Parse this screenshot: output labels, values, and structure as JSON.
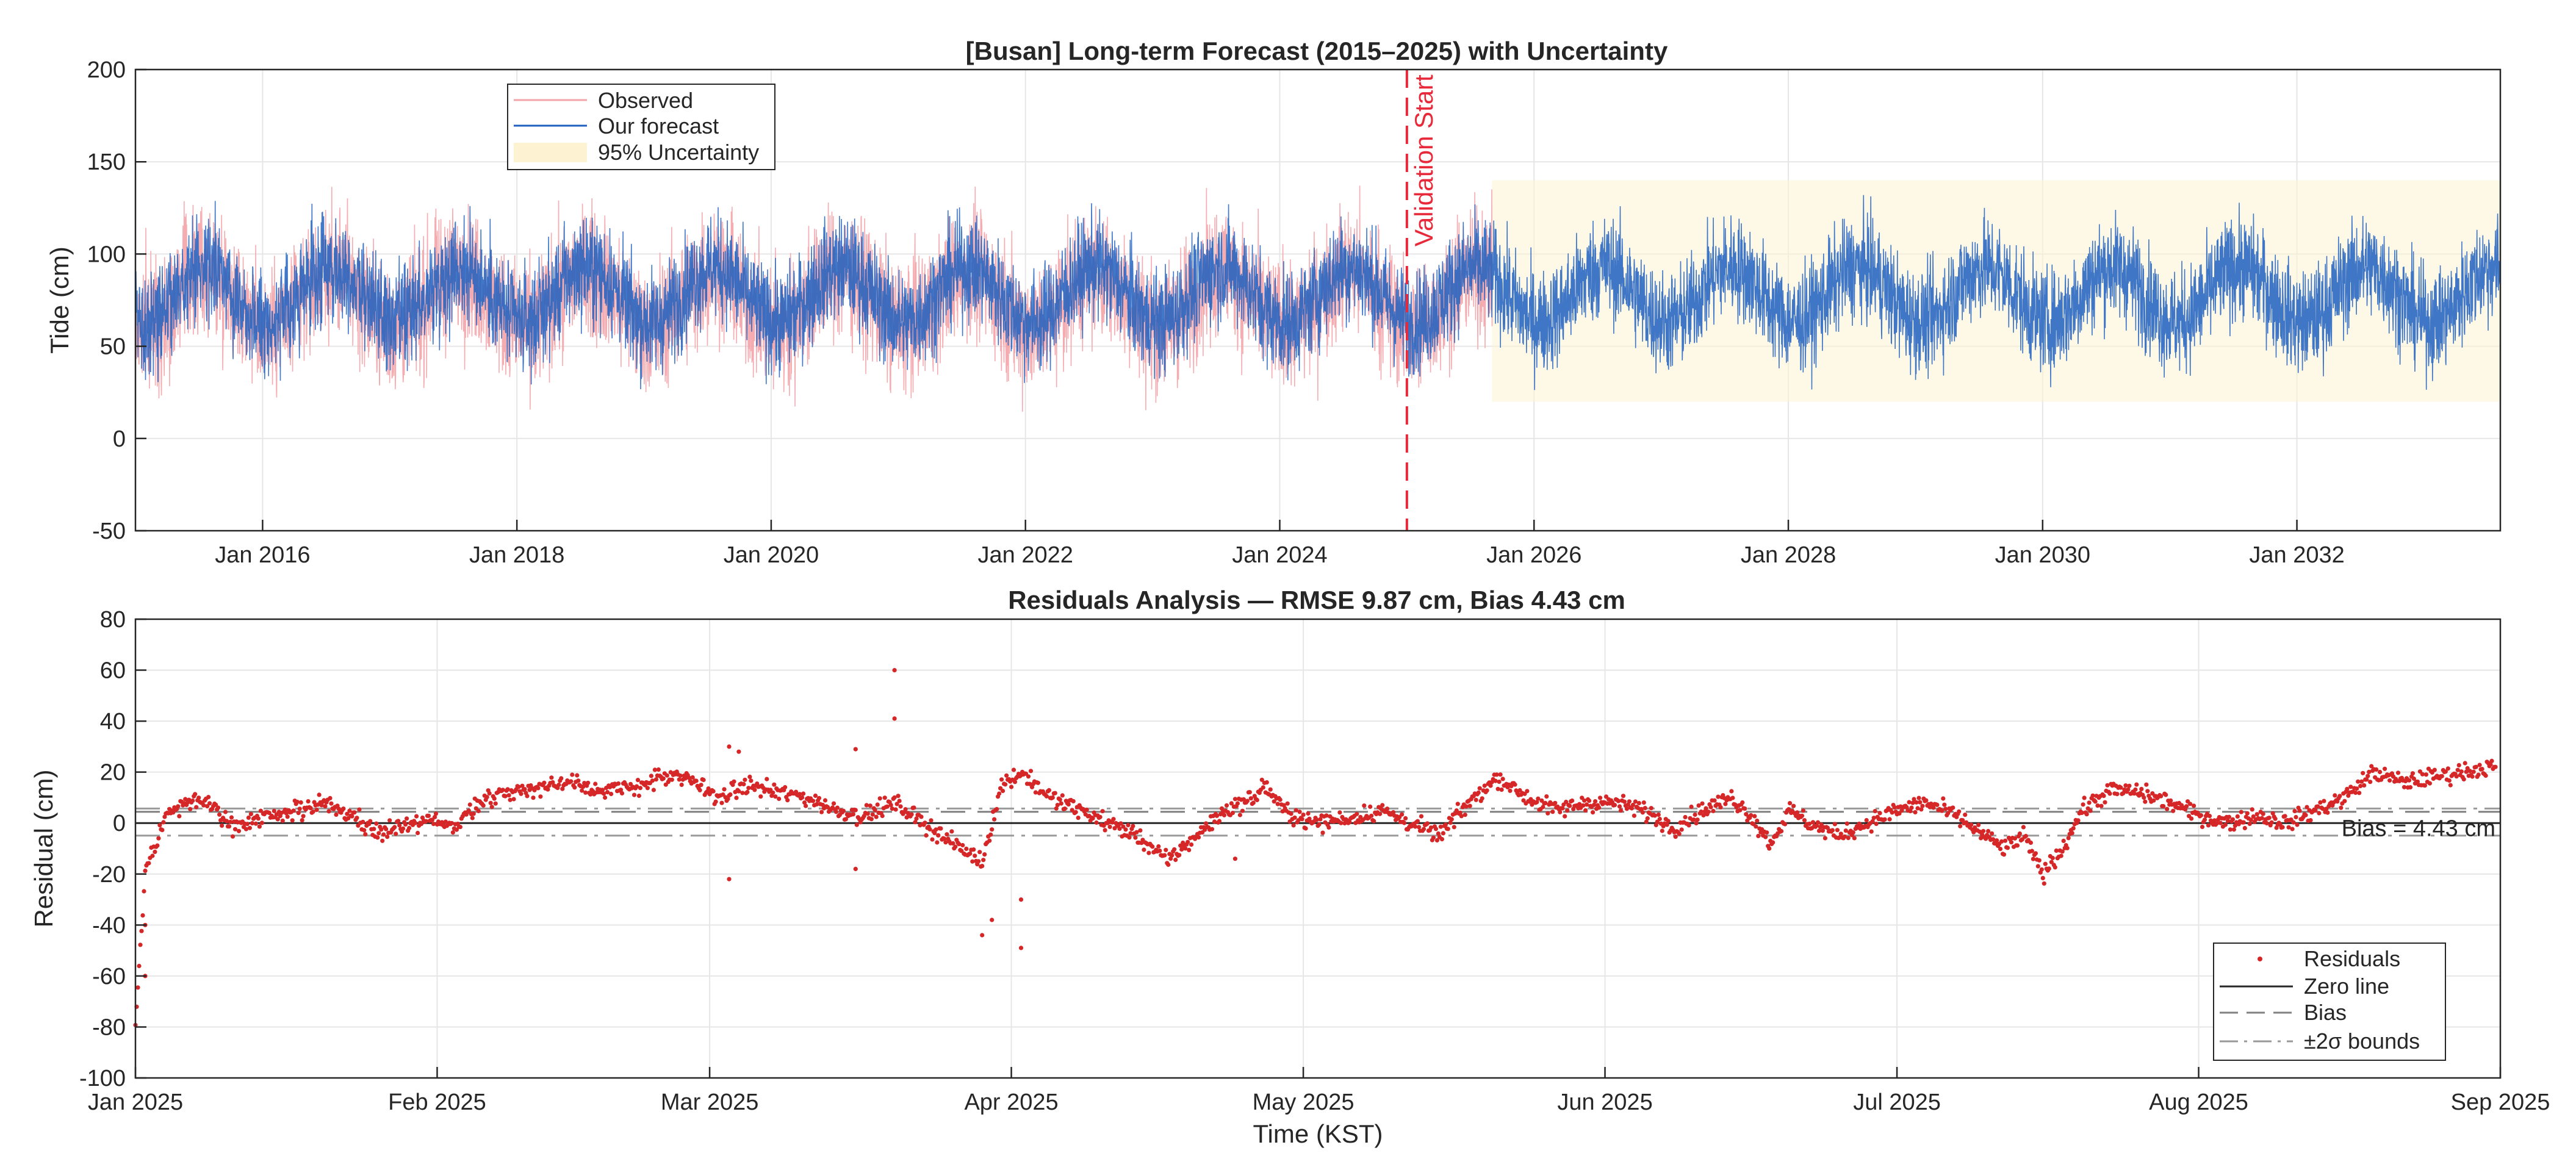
{
  "chart_data": [
    {
      "type": "line",
      "title": "[Busan] Long-term Forecast (2015–2025) with Uncertainty",
      "xlabel": "",
      "ylabel": "Tide (cm)",
      "x_range": [
        2015.0,
        2033.6
      ],
      "ylim": [
        -50,
        200
      ],
      "yticks": [
        -50,
        0,
        50,
        100,
        150,
        200
      ],
      "xticks": [
        {
          "label": "Jan 2016",
          "x": 2016.0
        },
        {
          "label": "Jan 2018",
          "x": 2018.0
        },
        {
          "label": "Jan 2020",
          "x": 2020.0
        },
        {
          "label": "Jan 2022",
          "x": 2022.0
        },
        {
          "label": "Jan 2024",
          "x": 2024.0
        },
        {
          "label": "Jan 2026",
          "x": 2026.0
        },
        {
          "label": "Jan 2028",
          "x": 2028.0
        },
        {
          "label": "Jan 2030",
          "x": 2030.0
        },
        {
          "label": "Jan 2032",
          "x": 2032.0
        }
      ],
      "grid": true,
      "legend_position": "top-left",
      "series": [
        {
          "name": "Observed",
          "color": "#f4a3a8",
          "x_range": [
            2015.0,
            2025.67
          ],
          "mean": 75,
          "seasonal_amplitude": 15,
          "spread": 60
        },
        {
          "name": "Our forecast",
          "color": "#1f5fbf",
          "x_range": [
            2015.0,
            2033.6
          ],
          "mean": 78,
          "seasonal_amplitude": 15,
          "spread": 55
        },
        {
          "name": "95% Uncertainty",
          "color": "#fdf3d2",
          "x_range": [
            2025.67,
            2033.6
          ],
          "lower": 20,
          "upper": 140
        }
      ],
      "annotations": [
        {
          "text": "Validation Start",
          "x": 2025.0,
          "color": "#e8293a",
          "style": "dashed-vertical"
        }
      ]
    },
    {
      "type": "scatter",
      "title": "Residuals Analysis — RMSE 9.87 cm, Bias 4.43 cm",
      "xlabel": "Time (KST)",
      "ylabel": "Residual (cm)",
      "x_range_days": [
        0,
        243
      ],
      "ylim": [
        -100,
        80
      ],
      "yticks": [
        -100,
        -80,
        -60,
        -40,
        -20,
        0,
        20,
        40,
        60,
        80
      ],
      "xticks": [
        {
          "label": "Jan 2025",
          "day": 0
        },
        {
          "label": "Feb 2025",
          "day": 31
        },
        {
          "label": "Mar 2025",
          "day": 59
        },
        {
          "label": "Apr 2025",
          "day": 90
        },
        {
          "label": "May 2025",
          "day": 120
        },
        {
          "label": "Jun 2025",
          "day": 151
        },
        {
          "label": "Jul 2025",
          "day": 181
        },
        {
          "label": "Aug 2025",
          "day": 212
        },
        {
          "label": "Sep 2025",
          "day": 243
        }
      ],
      "grid": true,
      "legend_position": "bottom-right",
      "bias": 4.43,
      "rmse": 9.87,
      "sigma_bounds": [
        -4.9,
        5.7
      ],
      "bias_label": "Bias = 4.43 cm",
      "residual_trend": [
        {
          "day": 0,
          "value": -80
        },
        {
          "day": 1,
          "value": -20
        },
        {
          "day": 3,
          "value": 3
        },
        {
          "day": 6,
          "value": 10
        },
        {
          "day": 8,
          "value": 6
        },
        {
          "day": 10,
          "value": -2
        },
        {
          "day": 14,
          "value": 3
        },
        {
          "day": 17,
          "value": 5
        },
        {
          "day": 19,
          "value": 8
        },
        {
          "day": 22,
          "value": 3
        },
        {
          "day": 25,
          "value": -3
        },
        {
          "day": 28,
          "value": -2
        },
        {
          "day": 31,
          "value": 2
        },
        {
          "day": 33,
          "value": -2
        },
        {
          "day": 35,
          "value": 8
        },
        {
          "day": 38,
          "value": 12
        },
        {
          "day": 42,
          "value": 14
        },
        {
          "day": 45,
          "value": 17
        },
        {
          "day": 48,
          "value": 12
        },
        {
          "day": 51,
          "value": 14
        },
        {
          "day": 54,
          "value": 18
        },
        {
          "day": 57,
          "value": 17
        },
        {
          "day": 60,
          "value": 10
        },
        {
          "day": 63,
          "value": 15
        },
        {
          "day": 66,
          "value": 12
        },
        {
          "day": 69,
          "value": 10
        },
        {
          "day": 72,
          "value": 5
        },
        {
          "day": 75,
          "value": 3
        },
        {
          "day": 78,
          "value": 8
        },
        {
          "day": 81,
          "value": 0
        },
        {
          "day": 84,
          "value": -8
        },
        {
          "day": 87,
          "value": -15
        },
        {
          "day": 89,
          "value": 15
        },
        {
          "day": 91,
          "value": 20
        },
        {
          "day": 94,
          "value": 10
        },
        {
          "day": 97,
          "value": 5
        },
        {
          "day": 100,
          "value": 0
        },
        {
          "day": 103,
          "value": -5
        },
        {
          "day": 106,
          "value": -15
        },
        {
          "day": 109,
          "value": -5
        },
        {
          "day": 112,
          "value": 5
        },
        {
          "day": 115,
          "value": 10
        },
        {
          "day": 116,
          "value": 15
        },
        {
          "day": 118,
          "value": 5
        },
        {
          "day": 121,
          "value": 0
        },
        {
          "day": 125,
          "value": 2
        },
        {
          "day": 128,
          "value": 5
        },
        {
          "day": 131,
          "value": 0
        },
        {
          "day": 134,
          "value": -5
        },
        {
          "day": 137,
          "value": 8
        },
        {
          "day": 140,
          "value": 18
        },
        {
          "day": 143,
          "value": 10
        },
        {
          "day": 146,
          "value": 5
        },
        {
          "day": 149,
          "value": 8
        },
        {
          "day": 152,
          "value": 8
        },
        {
          "day": 155,
          "value": 5
        },
        {
          "day": 158,
          "value": -2
        },
        {
          "day": 161,
          "value": 5
        },
        {
          "day": 164,
          "value": 10
        },
        {
          "day": 166,
          "value": 3
        },
        {
          "day": 168,
          "value": -8
        },
        {
          "day": 170,
          "value": 5
        },
        {
          "day": 172,
          "value": 0
        },
        {
          "day": 175,
          "value": -5
        },
        {
          "day": 178,
          "value": 0
        },
        {
          "day": 181,
          "value": 5
        },
        {
          "day": 184,
          "value": 8
        },
        {
          "day": 187,
          "value": 3
        },
        {
          "day": 190,
          "value": -5
        },
        {
          "day": 192,
          "value": -10
        },
        {
          "day": 194,
          "value": -5
        },
        {
          "day": 196,
          "value": -20
        },
        {
          "day": 198,
          "value": -10
        },
        {
          "day": 200,
          "value": 5
        },
        {
          "day": 203,
          "value": 13
        },
        {
          "day": 206,
          "value": 12
        },
        {
          "day": 209,
          "value": 8
        },
        {
          "day": 212,
          "value": 3
        },
        {
          "day": 215,
          "value": 0
        },
        {
          "day": 218,
          "value": 3
        },
        {
          "day": 221,
          "value": 0
        },
        {
          "day": 224,
          "value": 5
        },
        {
          "day": 227,
          "value": 10
        },
        {
          "day": 230,
          "value": 20
        },
        {
          "day": 233,
          "value": 16
        },
        {
          "day": 236,
          "value": 18
        },
        {
          "day": 239,
          "value": 20
        },
        {
          "day": 242,
          "value": 22
        }
      ],
      "outliers": [
        {
          "day": 1,
          "value": -60
        },
        {
          "day": 1,
          "value": -40
        },
        {
          "day": 61,
          "value": 30
        },
        {
          "day": 61,
          "value": -22
        },
        {
          "day": 62,
          "value": 28
        },
        {
          "day": 74,
          "value": 29
        },
        {
          "day": 74,
          "value": -18
        },
        {
          "day": 78,
          "value": 60
        },
        {
          "day": 78,
          "value": 41
        },
        {
          "day": 87,
          "value": -44
        },
        {
          "day": 88,
          "value": -38
        },
        {
          "day": 91,
          "value": -30
        },
        {
          "day": 91,
          "value": -49
        },
        {
          "day": 113,
          "value": -14
        }
      ],
      "legend": [
        {
          "label": "Residuals",
          "style": "dot",
          "color": "#d62728"
        },
        {
          "label": "Zero line",
          "style": "solid",
          "color": "#262626"
        },
        {
          "label": "Bias",
          "style": "dashed",
          "color": "#808080"
        },
        {
          "label": "±2σ bounds",
          "style": "dashdot",
          "color": "#999999"
        }
      ]
    }
  ]
}
